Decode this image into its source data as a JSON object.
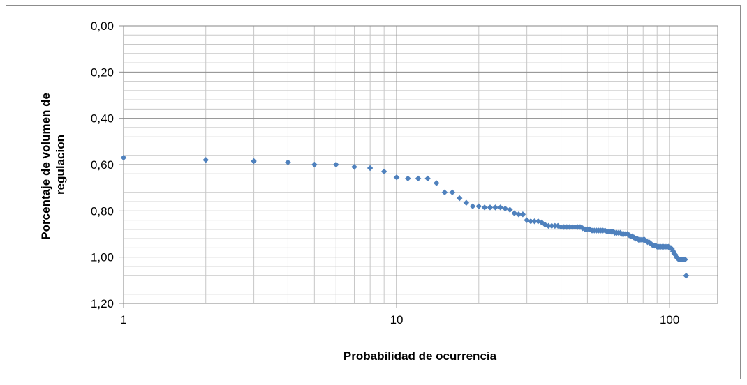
{
  "chart_data": {
    "type": "scatter",
    "title": "",
    "xlabel": "Probabilidad de ocurrencia",
    "ylabel_lines": [
      "Porcentaje de volumen de",
      "regulacion"
    ],
    "x_scale": "log",
    "xlim": [
      1,
      150
    ],
    "ylim": [
      0,
      1.2
    ],
    "y_inverted": true,
    "x_ticks": [
      1,
      10,
      100
    ],
    "x_tick_labels": [
      "1",
      "10",
      "100"
    ],
    "y_ticks": [
      0,
      0.2,
      0.4,
      0.6,
      0.8,
      1.0,
      1.2
    ],
    "y_tick_labels": [
      "0,00",
      "0,20",
      "0,40",
      "0,60",
      "0,80",
      "1,00",
      "1,20"
    ],
    "grid": true,
    "legend": "none",
    "marker": "diamond",
    "marker_color": "#4f81bd",
    "series": [
      {
        "x": [
          1,
          2,
          3,
          4,
          5,
          6,
          7,
          8,
          9,
          10,
          11,
          12,
          13,
          14,
          15,
          16,
          17,
          18,
          19,
          20,
          21,
          22,
          23,
          24,
          25,
          26,
          27,
          28,
          29,
          30,
          31,
          32,
          33,
          34,
          35,
          36,
          37,
          38,
          39,
          40,
          41,
          42,
          43,
          44,
          45,
          46,
          47,
          48,
          49,
          50,
          51,
          52,
          53,
          54,
          55,
          56,
          57,
          58,
          59,
          60,
          61,
          62,
          63,
          64,
          65,
          66,
          67,
          68,
          69,
          70,
          71,
          72,
          73,
          74,
          75,
          76,
          77,
          78,
          79,
          80,
          81,
          82,
          83,
          84,
          85,
          86,
          87,
          88,
          89,
          90,
          91,
          92,
          93,
          94,
          95,
          96,
          97,
          98,
          99,
          100,
          101,
          102,
          103,
          104,
          105,
          106,
          107,
          108,
          109,
          110,
          111,
          112,
          113,
          114,
          115
        ],
        "y": [
          0.57,
          0.58,
          0.585,
          0.59,
          0.6,
          0.6,
          0.61,
          0.615,
          0.63,
          0.655,
          0.66,
          0.66,
          0.66,
          0.68,
          0.72,
          0.72,
          0.745,
          0.765,
          0.78,
          0.78,
          0.785,
          0.785,
          0.785,
          0.785,
          0.79,
          0.795,
          0.81,
          0.815,
          0.815,
          0.84,
          0.845,
          0.845,
          0.845,
          0.85,
          0.86,
          0.865,
          0.865,
          0.865,
          0.865,
          0.87,
          0.87,
          0.87,
          0.87,
          0.87,
          0.87,
          0.87,
          0.87,
          0.875,
          0.88,
          0.88,
          0.88,
          0.885,
          0.885,
          0.885,
          0.885,
          0.885,
          0.885,
          0.885,
          0.89,
          0.89,
          0.89,
          0.89,
          0.895,
          0.895,
          0.895,
          0.895,
          0.9,
          0.9,
          0.9,
          0.9,
          0.905,
          0.91,
          0.91,
          0.915,
          0.92,
          0.92,
          0.925,
          0.925,
          0.925,
          0.925,
          0.925,
          0.93,
          0.935,
          0.935,
          0.94,
          0.945,
          0.95,
          0.95,
          0.95,
          0.955,
          0.955,
          0.955,
          0.955,
          0.955,
          0.955,
          0.955,
          0.955,
          0.955,
          0.955,
          0.96,
          0.96,
          0.965,
          0.975,
          0.985,
          0.99,
          1.0,
          1.005,
          1.01,
          1.01,
          1.01,
          1.01,
          1.01,
          1.01,
          1.01,
          1.08
        ]
      }
    ]
  }
}
